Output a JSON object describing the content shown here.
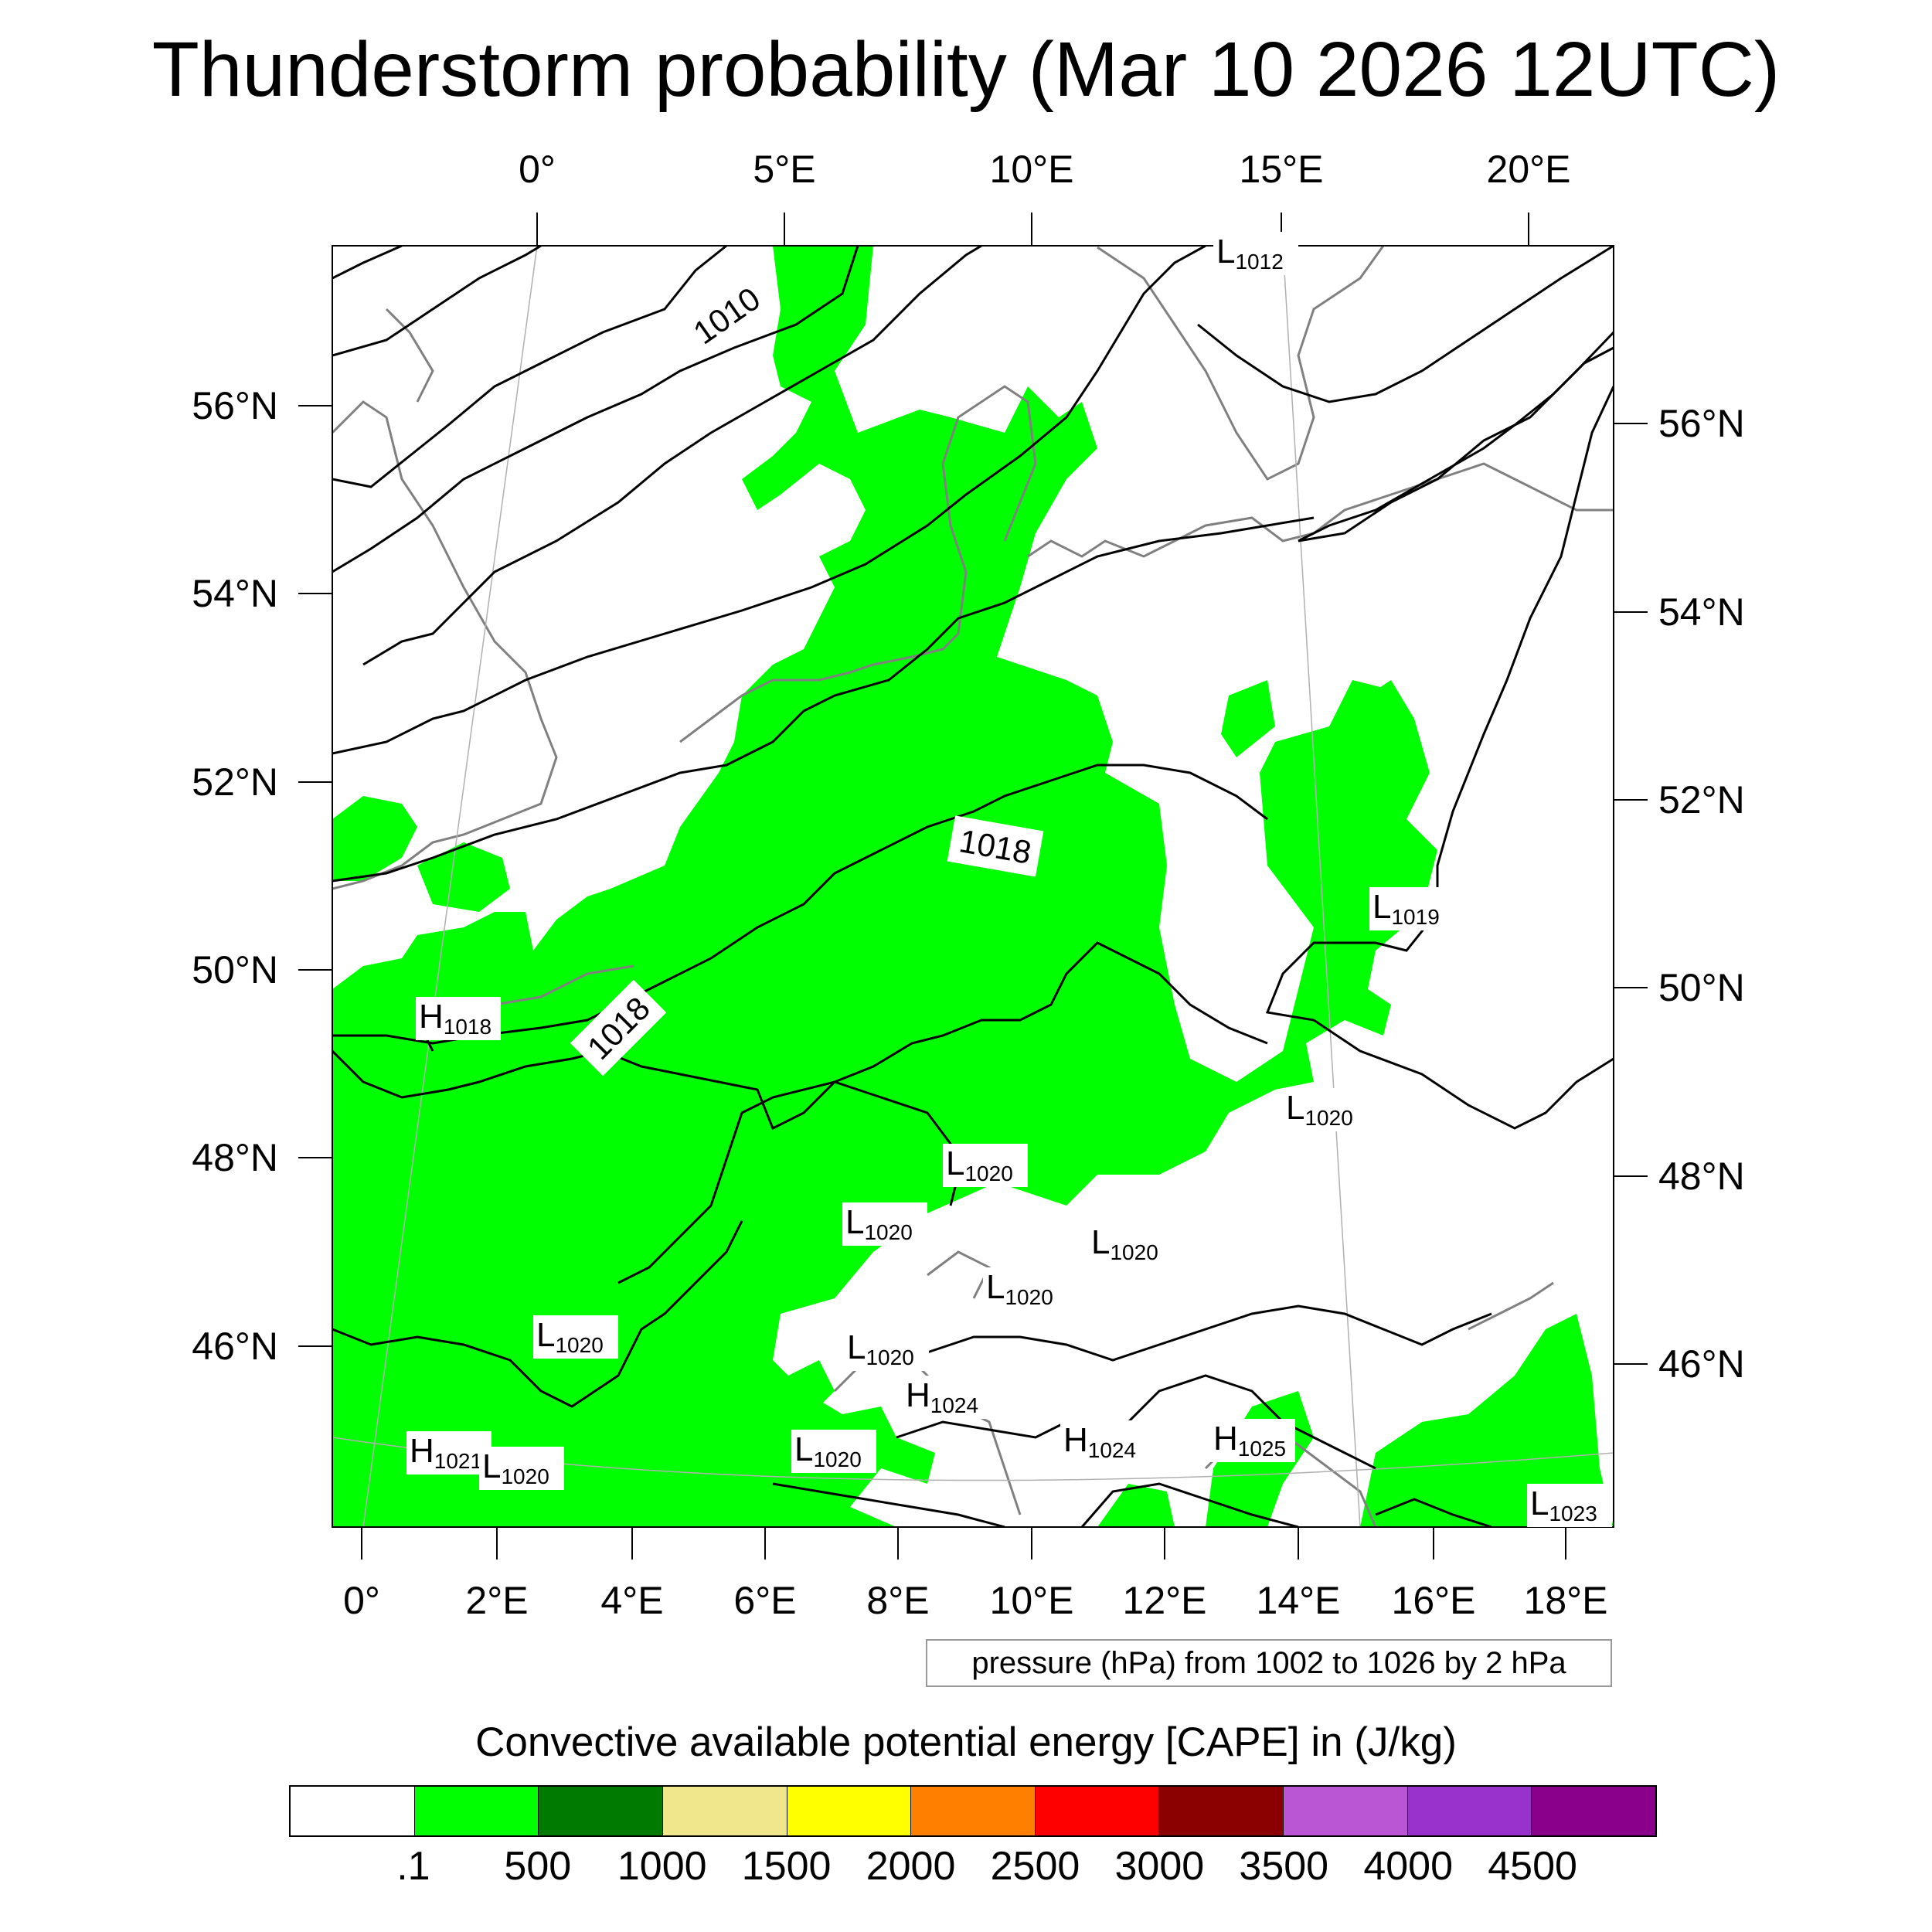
{
  "title": "Thunderstorm probability (Mar 10 2026 12UTC)",
  "top_axis_labels": [
    "0°",
    "5°E",
    "10°E",
    "15°E",
    "20°E"
  ],
  "bottom_axis_labels": [
    "0°",
    "2°E",
    "4°E",
    "6°E",
    "8°E",
    "10°E",
    "12°E",
    "14°E",
    "16°E",
    "18°E"
  ],
  "left_axis_labels": [
    "56°N",
    "54°N",
    "52°N",
    "50°N",
    "48°N",
    "46°N"
  ],
  "right_axis_labels": [
    "56°N",
    "54°N",
    "52°N",
    "50°N",
    "48°N",
    "46°N"
  ],
  "isobar_labels": [
    "1010",
    "1018",
    "1018"
  ],
  "pressure_centers": [
    {
      "letter": "L",
      "value": "1012"
    },
    {
      "letter": "L",
      "value": "1019"
    },
    {
      "letter": "H",
      "value": "1018"
    },
    {
      "letter": "L",
      "value": "1020"
    },
    {
      "letter": "L",
      "value": "1020"
    },
    {
      "letter": "L",
      "value": "1020"
    },
    {
      "letter": "L",
      "value": "1020"
    },
    {
      "letter": "L",
      "value": "1020"
    },
    {
      "letter": "L",
      "value": "1020"
    },
    {
      "letter": "L",
      "value": "1020"
    },
    {
      "letter": "H",
      "value": "1024"
    },
    {
      "letter": "H",
      "value": "1024"
    },
    {
      "letter": "H",
      "value": "1025"
    },
    {
      "letter": "L",
      "value": "1020"
    },
    {
      "letter": "H",
      "value": "1021"
    },
    {
      "letter": "L",
      "value": "1020"
    },
    {
      "letter": "L",
      "value": "1023"
    }
  ],
  "pressure_note": "pressure (hPa) from 1002 to 1026 by 2 hPa",
  "legend": {
    "title": "Convective available potential energy [CAPE] in (J/kg)",
    "colors": [
      "#ffffff",
      "#00ff00",
      "#007a00",
      "#f0e68c",
      "#ffff00",
      "#ff8000",
      "#ff0000",
      "#8b0000",
      "#ba55d3",
      "#9932cc",
      "#8b008b"
    ],
    "labels": [
      ".1",
      "500",
      "1000",
      "1500",
      "2000",
      "2500",
      "3000",
      "3500",
      "4000",
      "4500"
    ]
  }
}
